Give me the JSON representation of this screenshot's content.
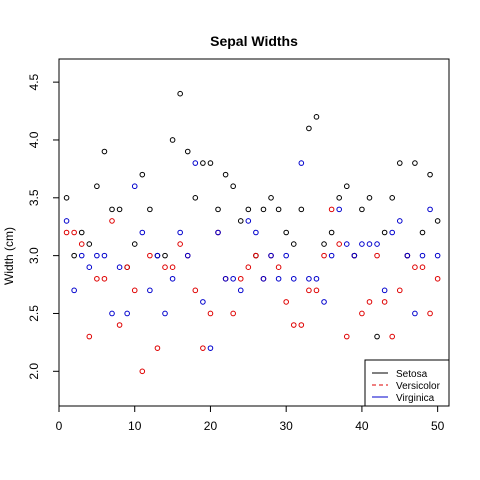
{
  "chart_data": {
    "type": "scatter",
    "title": "Sepal Widths",
    "xlabel": "",
    "ylabel": "Width (cm)",
    "xlim": [
      0,
      51.5
    ],
    "ylim": [
      1.7,
      4.7
    ],
    "x_ticks": [
      0,
      10,
      20,
      30,
      40,
      50
    ],
    "y_ticks": [
      2.0,
      2.5,
      3.0,
      3.5,
      4.0,
      4.5
    ],
    "grid": false,
    "legend_position": "bottom-right",
    "series": [
      {
        "name": "Setosa",
        "color": "#000000",
        "line_style": "solid",
        "x": [
          1,
          2,
          3,
          4,
          5,
          6,
          7,
          8,
          9,
          10,
          11,
          12,
          13,
          14,
          15,
          16,
          17,
          18,
          19,
          20,
          21,
          22,
          23,
          24,
          25,
          26,
          27,
          28,
          29,
          30,
          31,
          32,
          33,
          34,
          35,
          36,
          37,
          38,
          39,
          40,
          41,
          42,
          43,
          44,
          45,
          46,
          47,
          48,
          49,
          50
        ],
        "values": [
          3.5,
          3.0,
          3.2,
          3.1,
          3.6,
          3.9,
          3.4,
          3.4,
          2.9,
          3.1,
          3.7,
          3.4,
          3.0,
          3.0,
          4.0,
          4.4,
          3.9,
          3.5,
          3.8,
          3.8,
          3.4,
          3.7,
          3.6,
          3.3,
          3.4,
          3.0,
          3.4,
          3.5,
          3.4,
          3.2,
          3.1,
          3.4,
          4.1,
          4.2,
          3.1,
          3.2,
          3.5,
          3.6,
          3.0,
          3.4,
          3.5,
          2.3,
          3.2,
          3.5,
          3.8,
          3.0,
          3.8,
          3.2,
          3.7,
          3.3
        ]
      },
      {
        "name": "Versicolor",
        "color": "#df0000",
        "line_style": "dashed",
        "x": [
          1,
          2,
          3,
          4,
          5,
          6,
          7,
          8,
          9,
          10,
          11,
          12,
          13,
          14,
          15,
          16,
          17,
          18,
          19,
          20,
          21,
          22,
          23,
          24,
          25,
          26,
          27,
          28,
          29,
          30,
          31,
          32,
          33,
          34,
          35,
          36,
          37,
          38,
          39,
          40,
          41,
          42,
          43,
          44,
          45,
          46,
          47,
          48,
          49,
          50
        ],
        "values": [
          3.2,
          3.2,
          3.1,
          2.3,
          2.8,
          2.8,
          3.3,
          2.4,
          2.9,
          2.7,
          2.0,
          3.0,
          2.2,
          2.9,
          2.9,
          3.1,
          3.0,
          2.7,
          2.2,
          2.5,
          3.2,
          2.8,
          2.5,
          2.8,
          2.9,
          3.0,
          2.8,
          3.0,
          2.9,
          2.6,
          2.4,
          2.4,
          2.7,
          2.7,
          3.0,
          3.4,
          3.1,
          2.3,
          3.0,
          2.5,
          2.6,
          3.0,
          2.6,
          2.3,
          2.7,
          3.0,
          2.9,
          2.9,
          2.5,
          2.8
        ]
      },
      {
        "name": "Virginica",
        "color": "#0000cd",
        "line_style": "solid",
        "x": [
          1,
          2,
          3,
          4,
          5,
          6,
          7,
          8,
          9,
          10,
          11,
          12,
          13,
          14,
          15,
          16,
          17,
          18,
          19,
          20,
          21,
          22,
          23,
          24,
          25,
          26,
          27,
          28,
          29,
          30,
          31,
          32,
          33,
          34,
          35,
          36,
          37,
          38,
          39,
          40,
          41,
          42,
          43,
          44,
          45,
          46,
          47,
          48,
          49,
          50
        ],
        "values": [
          3.3,
          2.7,
          3.0,
          2.9,
          3.0,
          3.0,
          2.5,
          2.9,
          2.5,
          3.6,
          3.2,
          2.7,
          3.0,
          2.5,
          2.8,
          3.2,
          3.0,
          3.8,
          2.6,
          2.2,
          3.2,
          2.8,
          2.8,
          2.7,
          3.3,
          3.2,
          2.8,
          3.0,
          2.8,
          3.0,
          2.8,
          3.8,
          2.8,
          2.8,
          2.6,
          3.0,
          3.4,
          3.1,
          3.0,
          3.1,
          3.1,
          3.1,
          2.7,
          3.2,
          3.3,
          3.0,
          2.5,
          3.0,
          3.4,
          3.0
        ]
      }
    ]
  }
}
